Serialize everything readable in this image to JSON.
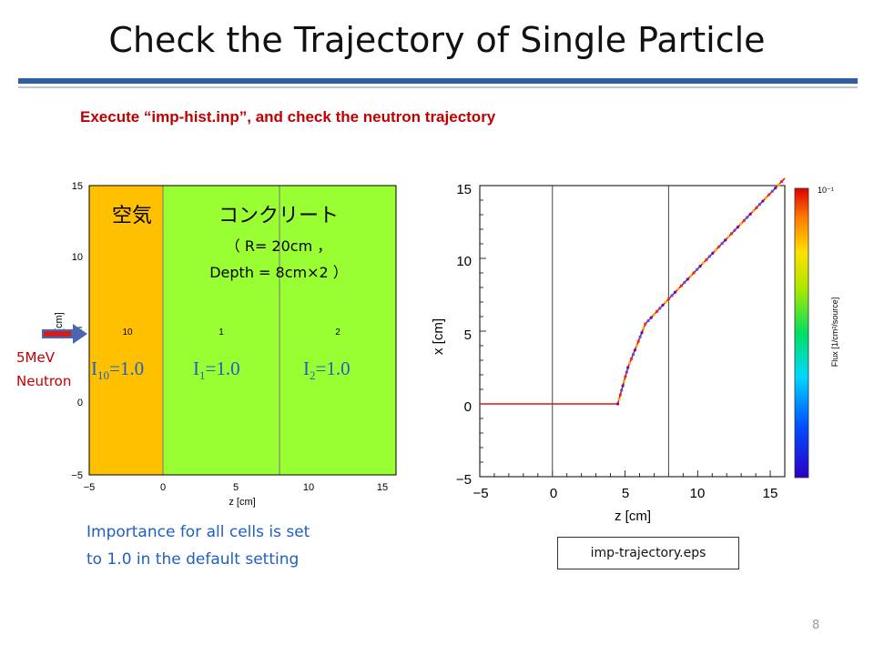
{
  "slide": {
    "title": "Check the Trajectory of Single Particle",
    "subtitle": "Execute “imp-hist.inp”, and check the neutron trajectory",
    "page_number": "8",
    "colors": {
      "title_rule": "#2f5f9a",
      "subtitle": "#c00000",
      "caption": "#1f5fbf",
      "air": "#ffc000",
      "concrete": "#99ff33"
    }
  },
  "left_plot": {
    "x_ticks": [
      "−5",
      "0",
      "5",
      "10",
      "15"
    ],
    "y_ticks": [
      "15",
      "10",
      "5",
      "0",
      "−5"
    ],
    "xlabel": "z [cm]",
    "ylabel": "x [cm]",
    "cell_numbers": [
      "10",
      "1",
      "2"
    ],
    "region_air": "空気",
    "region_concrete": "コンクリート",
    "concrete_line1": "（ R= 20cm ，",
    "concrete_line2": "Depth = 8cm×2 ）",
    "importances": [
      {
        "sub": "10",
        "value": "=1.0"
      },
      {
        "sub": "1",
        "value": "=1.0"
      },
      {
        "sub": "2",
        "value": "=1.0"
      }
    ],
    "neutron_line1": "5MeV",
    "neutron_line2": "Neutron"
  },
  "caption": {
    "line1": "Importance for all cells is set",
    "line2": "to 1.0 in the default setting"
  },
  "right_plot": {
    "x_ticks": [
      "−5",
      "0",
      "5",
      "10",
      "15"
    ],
    "y_ticks": [
      "15",
      "10",
      "5",
      "0",
      "−5"
    ],
    "xlabel": "z [cm]",
    "ylabel": "x [cm]",
    "colorbar_label": "Flux [1/cm²/source]",
    "colorbar_tick": "10⁻¹",
    "filename": "imp-trajectory.eps"
  },
  "chart_data": {
    "type": "line",
    "xlabel": "z [cm]",
    "ylabel": "x [cm]",
    "xlim": [
      -5,
      16
    ],
    "ylim": [
      -5,
      15
    ],
    "boundaries_z": [
      0,
      8
    ],
    "x": [
      -5,
      4.5,
      5.2,
      6.4,
      7.8,
      16
    ],
    "y": [
      0,
      0,
      2.5,
      5.5,
      7.0,
      15.5
    ]
  }
}
